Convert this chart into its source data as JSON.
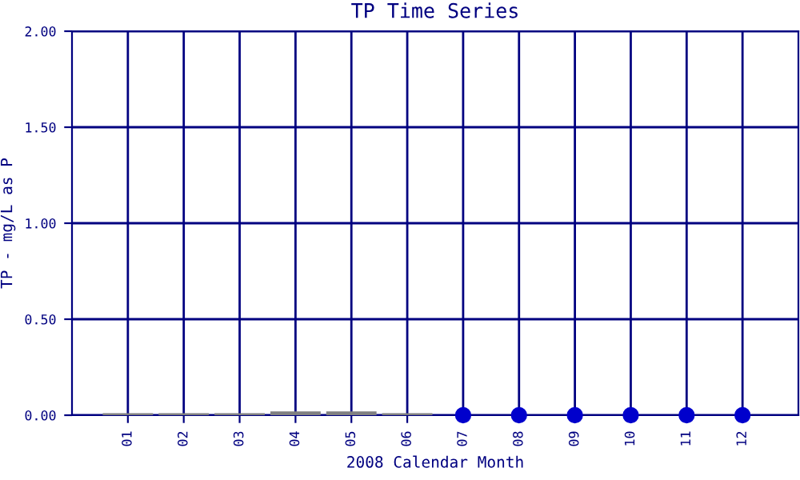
{
  "chart_data": {
    "type": "bar",
    "title": "TP Time Series",
    "xlabel": "2008 Calendar Month",
    "ylabel": "TP - mg/L as P",
    "categories": [
      "01",
      "02",
      "03",
      "04",
      "05",
      "06",
      "07",
      "08",
      "09",
      "10",
      "11",
      "12"
    ],
    "series": [
      {
        "color": "#808080",
        "values": [
          0.01,
          0.01,
          0.01,
          0.02,
          0.02,
          0.01,
          null,
          null,
          null,
          null,
          null,
          null
        ]
      },
      {
        "type": "scatter",
        "color": "#0000cc",
        "values": [
          null,
          null,
          null,
          null,
          null,
          null,
          0,
          0,
          0,
          0,
          0,
          0
        ]
      }
    ],
    "ylim": [
      0,
      2
    ],
    "yticks": [
      {
        "value": 0,
        "label": "0.00"
      },
      {
        "value": 0.5,
        "label": "0.50"
      },
      {
        "value": 1,
        "label": "1.00"
      },
      {
        "value": 1.5,
        "label": "1.50"
      },
      {
        "value": 2,
        "label": "2.00"
      }
    ],
    "grid": true,
    "marker": "circle"
  }
}
